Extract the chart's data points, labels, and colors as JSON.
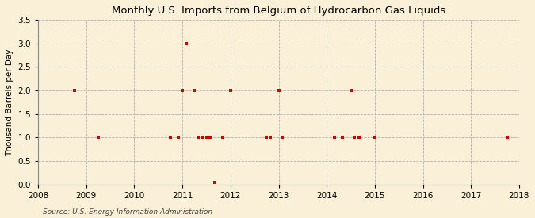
{
  "title": "Monthly U.S. Imports from Belgium of Hydrocarbon Gas Liquids",
  "ylabel": "Thousand Barrels per Day",
  "source": "Source: U.S. Energy Information Administration",
  "background_color": "#faefd7",
  "marker_color": "#cc0000",
  "xlim": [
    2008,
    2018
  ],
  "ylim": [
    0.0,
    3.5
  ],
  "yticks": [
    0.0,
    0.5,
    1.0,
    1.5,
    2.0,
    2.5,
    3.0,
    3.5
  ],
  "xticks": [
    2008,
    2009,
    2010,
    2011,
    2012,
    2013,
    2014,
    2015,
    2016,
    2017,
    2018
  ],
  "data_points": [
    [
      2008.75,
      2.0
    ],
    [
      2009.25,
      1.0
    ],
    [
      2010.75,
      1.0
    ],
    [
      2010.92,
      1.0
    ],
    [
      2011.0,
      2.0
    ],
    [
      2011.08,
      3.0
    ],
    [
      2011.25,
      2.0
    ],
    [
      2011.33,
      1.0
    ],
    [
      2011.42,
      1.0
    ],
    [
      2011.5,
      1.0
    ],
    [
      2011.58,
      1.0
    ],
    [
      2011.67,
      0.05
    ],
    [
      2011.83,
      1.0
    ],
    [
      2012.0,
      2.0
    ],
    [
      2012.75,
      1.0
    ],
    [
      2012.83,
      1.0
    ],
    [
      2013.0,
      2.0
    ],
    [
      2013.08,
      1.0
    ],
    [
      2014.17,
      1.0
    ],
    [
      2014.33,
      1.0
    ],
    [
      2014.5,
      2.0
    ],
    [
      2014.58,
      1.0
    ],
    [
      2014.67,
      1.0
    ],
    [
      2015.0,
      1.0
    ],
    [
      2017.75,
      1.0
    ]
  ]
}
